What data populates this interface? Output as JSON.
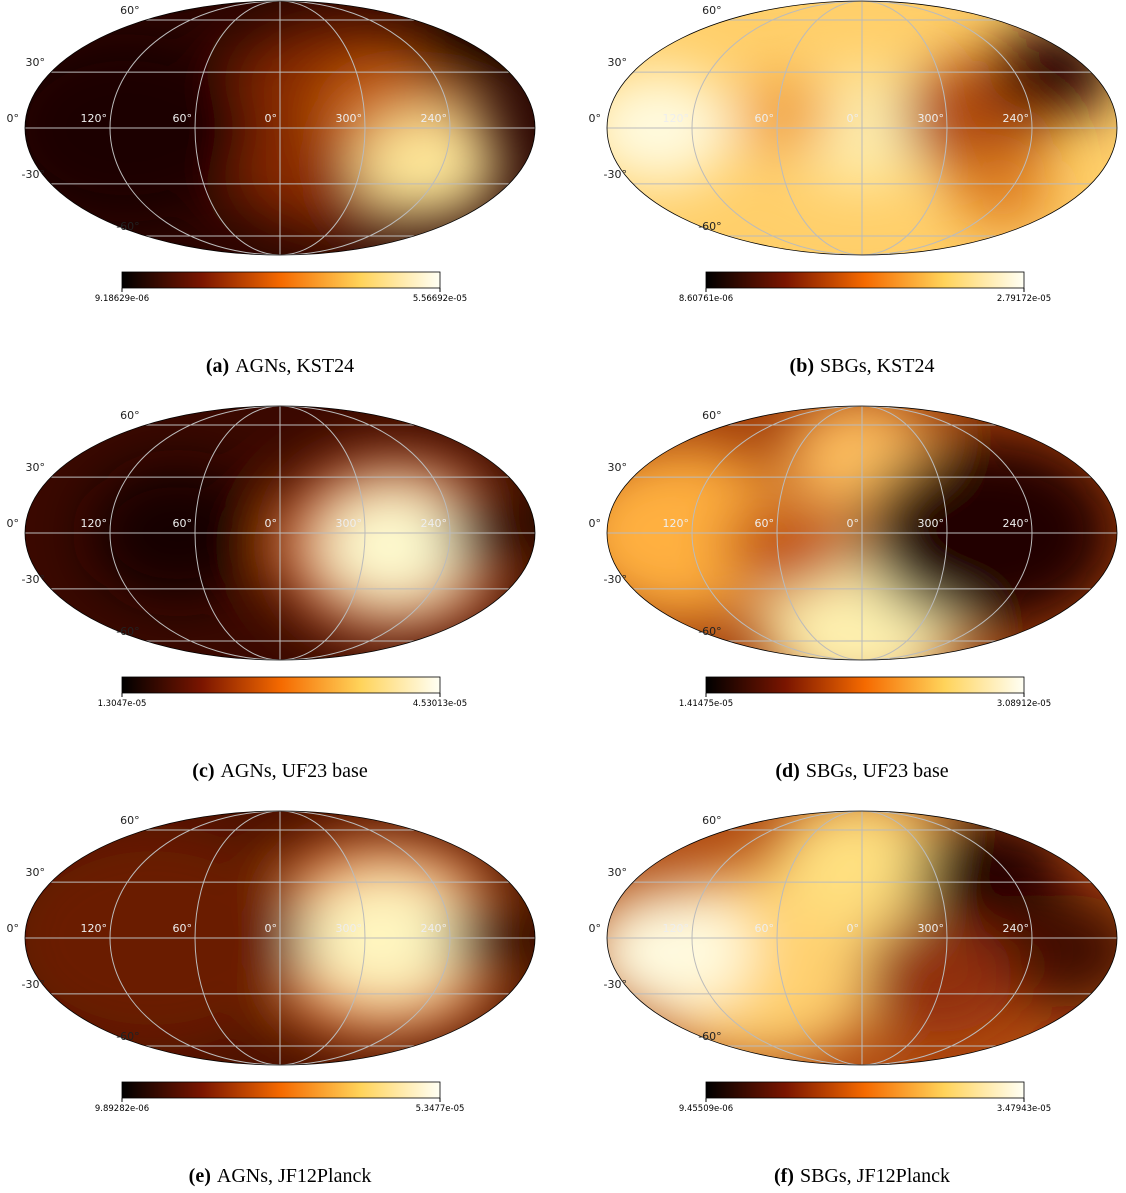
{
  "latitude_labels": [
    "60°",
    "30°",
    "0°",
    "-30°",
    "-60°"
  ],
  "longitude_labels": [
    "120°",
    "60°",
    "0°",
    "300°",
    "240°"
  ],
  "panels": [
    {
      "tag": "(a)",
      "caption": "AGNs, KST24",
      "colorbar": {
        "min": "9.18629e-06",
        "max": "5.56692e-05"
      }
    },
    {
      "tag": "(b)",
      "caption": "SBGs, KST24",
      "colorbar": {
        "min": "8.60761e-06",
        "max": "2.79172e-05"
      }
    },
    {
      "tag": "(c)",
      "caption": "AGNs, UF23 base",
      "colorbar": {
        "min": "1.3047e-05",
        "max": "4.53013e-05"
      }
    },
    {
      "tag": "(d)",
      "caption": "SBGs, UF23 base",
      "colorbar": {
        "min": "1.41475e-05",
        "max": "3.08912e-05"
      }
    },
    {
      "tag": "(e)",
      "caption": "AGNs, JF12Planck",
      "colorbar": {
        "min": "9.89282e-06",
        "max": "5.3477e-05"
      }
    },
    {
      "tag": "(f)",
      "caption": "SBGs, JF12Planck",
      "colorbar": {
        "min": "9.45509e-06",
        "max": "3.47943e-05"
      }
    }
  ]
}
